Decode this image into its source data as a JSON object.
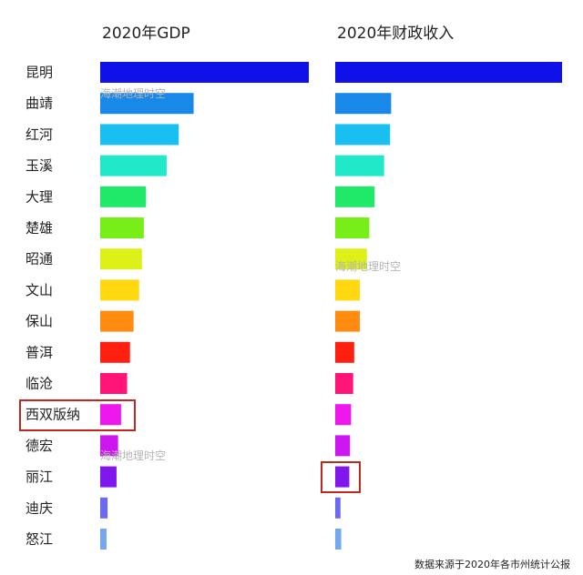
{
  "chart_data": {
    "type": "bar",
    "categories": [
      "昆明",
      "曲靖",
      "红河",
      "玉溪",
      "大理",
      "楚雄",
      "昭通",
      "文山",
      "保山",
      "普洱",
      "临沧",
      "西双版纳",
      "德宏",
      "丽江",
      "迪庆",
      "怒江"
    ],
    "colors": [
      "#1010e8",
      "#1a88e8",
      "#18bff0",
      "#20e8c8",
      "#20e868",
      "#78ee18",
      "#ddf018",
      "#ffd810",
      "#ff8c10",
      "#ff2010",
      "#ff1478",
      "#ee18ee",
      "#cc18ee",
      "#8018ee",
      "#6a6aee",
      "#74a8ee"
    ],
    "series": [
      {
        "name": "2020年GDP",
        "values": [
          6734,
          3016,
          2535,
          2144,
          1478,
          1407,
          1347,
          1256,
          1077,
          962,
          869,
          673,
          577,
          527,
          239,
          204
        ]
      },
      {
        "name": "2020年财政收入",
        "values": [
          645,
          159,
          156,
          139,
          112,
          97,
          90,
          70,
          70,
          54,
          51,
          45,
          42,
          40,
          15,
          17
        ]
      }
    ],
    "highlight": [
      "西双版纳"
    ]
  },
  "watermarks": [
    "海潮地理时空",
    "海潮地理时空",
    "海潮地理时空"
  ],
  "source_note": "数据来源于2020年各市州统计公报"
}
